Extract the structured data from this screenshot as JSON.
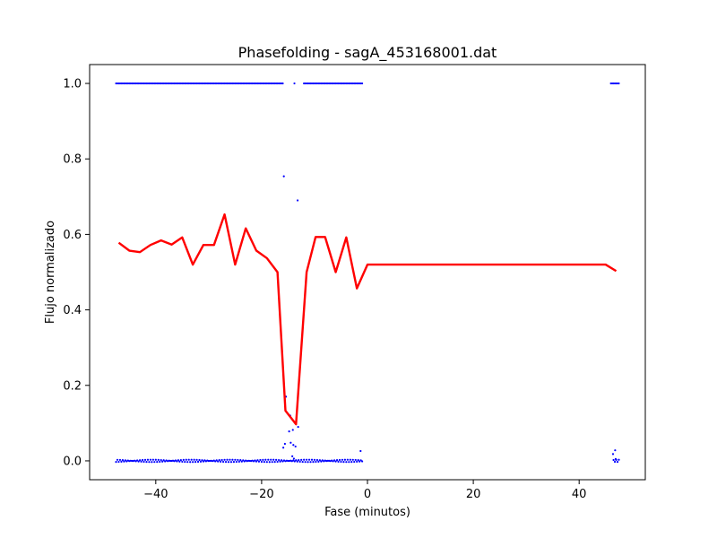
{
  "chart_data": {
    "type": "scatter",
    "title": "Phasefolding - sagA_453168001.dat",
    "xlabel": "Fase (minutos)",
    "ylabel": "Flujo normalizado",
    "xlim": [
      -52.5,
      52.5
    ],
    "ylim": [
      -0.05,
      1.05
    ],
    "xticks": [
      -40,
      -20,
      0,
      20,
      40
    ],
    "xtick_labels": [
      "−40",
      "−20",
      "0",
      "20",
      "40"
    ],
    "yticks": [
      0.0,
      0.2,
      0.4,
      0.6,
      0.8,
      1.0
    ],
    "ytick_labels": [
      "0.0",
      "0.2",
      "0.4",
      "0.6",
      "0.8",
      "1.0"
    ],
    "grid": false,
    "colors": {
      "points": "#0000ff",
      "line": "#ff0000"
    },
    "series": [
      {
        "kind": "scatter",
        "segments_high": [
          [
            -47.5,
            -16.0
          ],
          [
            -12.0,
            -1.0
          ],
          [
            46.0,
            47.5
          ]
        ],
        "segments_high_y": 1.0,
        "segments_low": [
          [
            -47.5,
            -1.0
          ],
          [
            46.5,
            47.5
          ]
        ],
        "segments_low_y": 0.0,
        "extra_points": [
          [
            -15.8,
            0.754
          ],
          [
            -13.2,
            0.69
          ],
          [
            -13.8,
            1.0
          ],
          [
            -15.4,
            0.17
          ],
          [
            -14.6,
            0.12
          ],
          [
            -13.1,
            0.09
          ],
          [
            -14.8,
            0.078
          ],
          [
            -14.1,
            0.082
          ],
          [
            -15.6,
            0.045
          ],
          [
            -15.9,
            0.035
          ],
          [
            -14.5,
            0.048
          ],
          [
            -14.0,
            0.042
          ],
          [
            -13.6,
            0.038
          ],
          [
            -14.2,
            0.012
          ],
          [
            -13.9,
            0.006
          ],
          [
            -1.3,
            0.026
          ],
          [
            46.8,
            0.028
          ],
          [
            46.4,
            0.018
          ],
          [
            46.9,
            0.005
          ]
        ]
      },
      {
        "kind": "line",
        "points": [
          [
            -47.0,
            0.578
          ],
          [
            -45.0,
            0.557
          ],
          [
            -43.0,
            0.553
          ],
          [
            -41.0,
            0.572
          ],
          [
            -39.0,
            0.584
          ],
          [
            -37.0,
            0.573
          ],
          [
            -35.0,
            0.592
          ],
          [
            -33.0,
            0.52
          ],
          [
            -31.0,
            0.572
          ],
          [
            -29.0,
            0.572
          ],
          [
            -27.0,
            0.653
          ],
          [
            -25.0,
            0.52
          ],
          [
            -23.0,
            0.616
          ],
          [
            -21.0,
            0.557
          ],
          [
            -19.0,
            0.537
          ],
          [
            -17.0,
            0.5
          ],
          [
            -15.5,
            0.133
          ],
          [
            -13.5,
            0.097
          ],
          [
            -11.5,
            0.5
          ],
          [
            -9.8,
            0.593
          ],
          [
            -8.0,
            0.593
          ],
          [
            -6.0,
            0.5
          ],
          [
            -4.0,
            0.592
          ],
          [
            -2.0,
            0.457
          ],
          [
            0.0,
            0.52
          ],
          [
            45.0,
            0.52
          ],
          [
            47.0,
            0.503
          ]
        ]
      }
    ]
  }
}
